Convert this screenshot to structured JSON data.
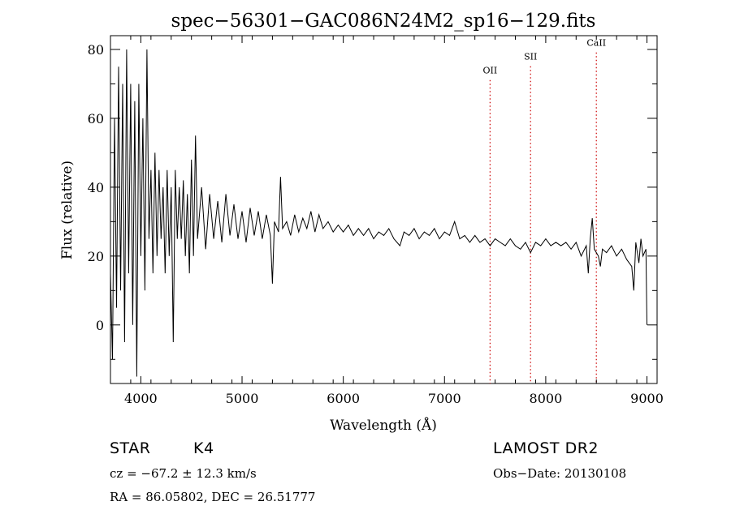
{
  "chart_data": {
    "type": "line",
    "title": "spec−56301−GAC086N24M2_sp16−129.fits",
    "xlabel": "Wavelength (Å)",
    "ylabel": "Flux (relative)",
    "xlim": [
      3700,
      9100
    ],
    "ylim": [
      -17,
      84
    ],
    "x_ticks": [
      4000,
      5000,
      6000,
      7000,
      8000,
      9000
    ],
    "y_ticks": [
      0,
      20,
      40,
      60,
      80
    ],
    "grid": false,
    "series": [
      {
        "name": "",
        "color": "#000000",
        "points": [
          [
            3700,
            15
          ],
          [
            3720,
            -10
          ],
          [
            3740,
            60
          ],
          [
            3760,
            5
          ],
          [
            3780,
            75
          ],
          [
            3800,
            10
          ],
          [
            3820,
            70
          ],
          [
            3840,
            -5
          ],
          [
            3860,
            80
          ],
          [
            3880,
            15
          ],
          [
            3900,
            70
          ],
          [
            3920,
            0
          ],
          [
            3940,
            65
          ],
          [
            3960,
            -15
          ],
          [
            3980,
            70
          ],
          [
            4000,
            20
          ],
          [
            4020,
            60
          ],
          [
            4040,
            10
          ],
          [
            4060,
            80
          ],
          [
            4080,
            25
          ],
          [
            4100,
            45
          ],
          [
            4120,
            15
          ],
          [
            4140,
            50
          ],
          [
            4160,
            20
          ],
          [
            4180,
            45
          ],
          [
            4200,
            25
          ],
          [
            4220,
            40
          ],
          [
            4240,
            15
          ],
          [
            4260,
            45
          ],
          [
            4280,
            20
          ],
          [
            4300,
            40
          ],
          [
            4320,
            -5
          ],
          [
            4340,
            45
          ],
          [
            4360,
            25
          ],
          [
            4380,
            40
          ],
          [
            4400,
            25
          ],
          [
            4420,
            42
          ],
          [
            4440,
            20
          ],
          [
            4460,
            38
          ],
          [
            4480,
            15
          ],
          [
            4500,
            48
          ],
          [
            4520,
            20
          ],
          [
            4540,
            55
          ],
          [
            4560,
            25
          ],
          [
            4600,
            40
          ],
          [
            4640,
            22
          ],
          [
            4680,
            38
          ],
          [
            4720,
            25
          ],
          [
            4760,
            36
          ],
          [
            4800,
            24
          ],
          [
            4840,
            38
          ],
          [
            4880,
            26
          ],
          [
            4920,
            35
          ],
          [
            4960,
            25
          ],
          [
            5000,
            33
          ],
          [
            5040,
            24
          ],
          [
            5080,
            34
          ],
          [
            5120,
            26
          ],
          [
            5160,
            33
          ],
          [
            5200,
            25
          ],
          [
            5240,
            32
          ],
          [
            5280,
            26
          ],
          [
            5300,
            12
          ],
          [
            5320,
            30
          ],
          [
            5360,
            27
          ],
          [
            5380,
            43
          ],
          [
            5400,
            28
          ],
          [
            5440,
            30
          ],
          [
            5480,
            26
          ],
          [
            5520,
            32
          ],
          [
            5560,
            27
          ],
          [
            5600,
            31
          ],
          [
            5640,
            28
          ],
          [
            5680,
            33
          ],
          [
            5720,
            27
          ],
          [
            5760,
            32
          ],
          [
            5800,
            28
          ],
          [
            5850,
            30
          ],
          [
            5900,
            27
          ],
          [
            5950,
            29
          ],
          [
            6000,
            27
          ],
          [
            6050,
            29
          ],
          [
            6100,
            26
          ],
          [
            6150,
            28
          ],
          [
            6200,
            26
          ],
          [
            6250,
            28
          ],
          [
            6300,
            25
          ],
          [
            6350,
            27
          ],
          [
            6400,
            26
          ],
          [
            6450,
            28
          ],
          [
            6500,
            25
          ],
          [
            6560,
            23
          ],
          [
            6600,
            27
          ],
          [
            6650,
            26
          ],
          [
            6700,
            28
          ],
          [
            6750,
            25
          ],
          [
            6800,
            27
          ],
          [
            6850,
            26
          ],
          [
            6900,
            28
          ],
          [
            6950,
            25
          ],
          [
            7000,
            27
          ],
          [
            7050,
            26
          ],
          [
            7100,
            30
          ],
          [
            7150,
            25
          ],
          [
            7200,
            26
          ],
          [
            7250,
            24
          ],
          [
            7300,
            26
          ],
          [
            7350,
            24
          ],
          [
            7400,
            25
          ],
          [
            7450,
            23
          ],
          [
            7500,
            25
          ],
          [
            7550,
            24
          ],
          [
            7600,
            23
          ],
          [
            7650,
            25
          ],
          [
            7700,
            23
          ],
          [
            7750,
            22
          ],
          [
            7800,
            24
          ],
          [
            7850,
            21
          ],
          [
            7900,
            24
          ],
          [
            7950,
            23
          ],
          [
            8000,
            25
          ],
          [
            8050,
            23
          ],
          [
            8100,
            24
          ],
          [
            8150,
            23
          ],
          [
            8200,
            24
          ],
          [
            8250,
            22
          ],
          [
            8300,
            24
          ],
          [
            8350,
            20
          ],
          [
            8400,
            23
          ],
          [
            8420,
            15
          ],
          [
            8440,
            25
          ],
          [
            8460,
            31
          ],
          [
            8480,
            22
          ],
          [
            8520,
            20
          ],
          [
            8540,
            17
          ],
          [
            8560,
            22
          ],
          [
            8600,
            21
          ],
          [
            8650,
            23
          ],
          [
            8700,
            20
          ],
          [
            8750,
            22
          ],
          [
            8800,
            19
          ],
          [
            8850,
            17
          ],
          [
            8870,
            10
          ],
          [
            8890,
            24
          ],
          [
            8920,
            18
          ],
          [
            8940,
            25
          ],
          [
            8960,
            20
          ],
          [
            8990,
            22
          ],
          [
            9000,
            0
          ]
        ]
      }
    ],
    "lines": [
      {
        "label": "OII",
        "x": 7450,
        "label_y": 73
      },
      {
        "label": "SII",
        "x": 7850,
        "label_y": 77
      },
      {
        "label": "CaII",
        "x": 8500,
        "label_y": 81
      }
    ],
    "line_color": "#cc0000"
  },
  "info": {
    "object": "STAR",
    "subclass": "K4",
    "survey": "LAMOST  DR2",
    "cz": "cz = −67.2 ± 12.3 km/s",
    "obs_date": "Obs−Date: 20130108",
    "coords": "RA =  86.05802, DEC =  26.51777"
  }
}
